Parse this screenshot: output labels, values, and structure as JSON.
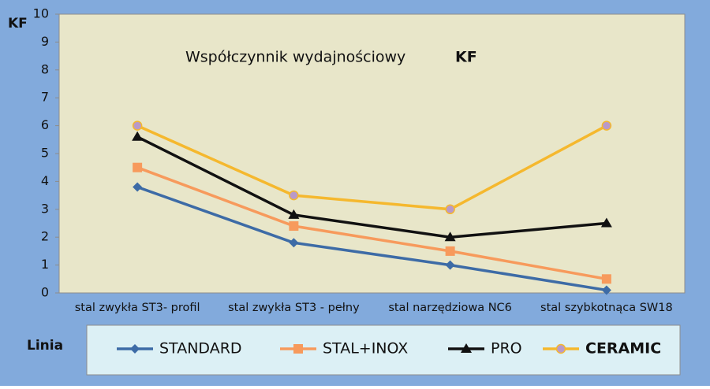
{
  "chart_data": {
    "type": "line",
    "title": "Współczynnik wydajnościowy",
    "title_emphasis": "KF",
    "y_label": "KF",
    "legend_title": "Linia",
    "categories": [
      "stal zwykła ST3- profil",
      "stal zwykła ST3 - pełny",
      "stal narzędziowa NC6",
      "stal szybkotnąca SW18"
    ],
    "series": [
      {
        "name": "STANDARD",
        "color": "#3d6ba6",
        "marker": "diamond",
        "values": [
          3.8,
          1.8,
          1.0,
          0.1
        ]
      },
      {
        "name": "STAL+INOX",
        "color": "#f79a5c",
        "marker": "square",
        "values": [
          4.5,
          2.4,
          1.5,
          0.5
        ]
      },
      {
        "name": "PRO",
        "color": "#111111",
        "marker": "triangle",
        "values": [
          5.6,
          2.8,
          2.0,
          2.5
        ]
      },
      {
        "name": "CERAMIC",
        "color": "#f5b82e",
        "marker": "circle",
        "marker_fill": "#b99ac8",
        "bold": true,
        "values": [
          6,
          3.5,
          3,
          6
        ]
      }
    ],
    "ylim": [
      0,
      10
    ],
    "yticks": [
      0,
      1,
      2,
      3,
      4,
      5,
      6,
      7,
      8,
      9,
      10
    ]
  }
}
